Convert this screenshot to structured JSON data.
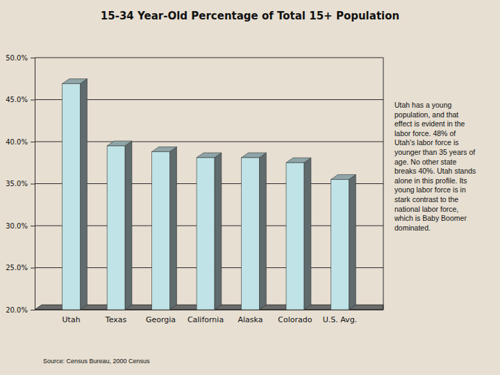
{
  "chart_data": {
    "type": "bar",
    "title": "15-34 Year-Old Percentage of Total 15+ Population",
    "categories": [
      "Utah",
      "Texas",
      "Georgia",
      "California",
      "Alaska",
      "Colorado",
      "U.S. Avg."
    ],
    "values": [
      46.9,
      39.5,
      38.8,
      38.1,
      38.1,
      37.5,
      35.5
    ],
    "color": "#bfe3e6",
    "ylim": [
      20,
      50
    ],
    "yticks": [
      {
        "value": 20,
        "label": "20.0%"
      },
      {
        "value": 25,
        "label": "25.0%"
      },
      {
        "value": 30,
        "label": "30.0%"
      },
      {
        "value": 35,
        "label": "35.0%"
      },
      {
        "value": 40,
        "label": "40.0%"
      },
      {
        "value": 45,
        "label": "45.0%"
      },
      {
        "value": 50,
        "label": "50.0%"
      }
    ],
    "grid": true,
    "annotation": [
      "Utah has a young",
      "population, and that",
      "effect is evident in the",
      "labor force. 48% of",
      "Utah's labor force is",
      "younger than 35 years of",
      "age. No other state",
      "breaks 40%. Utah stands",
      "alone in this profile. Its",
      "young labor force is in",
      "stark contrast to the",
      "national labor force,",
      "which is Baby Boomer",
      "dominated."
    ],
    "source": "Source: Census Bureau, 2000 Census"
  }
}
